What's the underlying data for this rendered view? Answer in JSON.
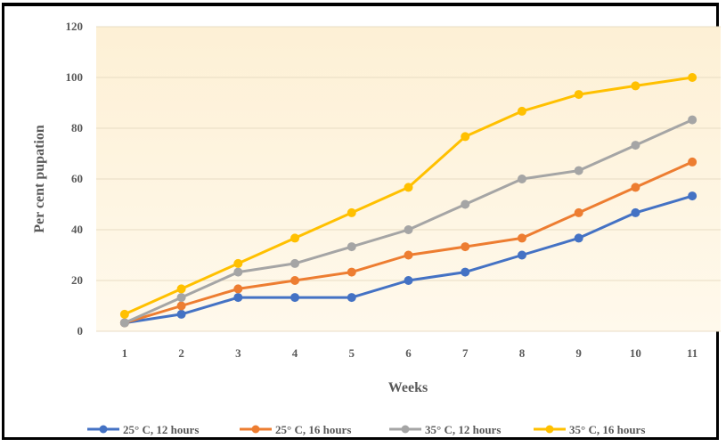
{
  "chart_data": {
    "type": "line",
    "title": "",
    "xlabel": "Weeks",
    "ylabel": "Per cent pupation",
    "categories": [
      "1",
      "2",
      "3",
      "4",
      "5",
      "6",
      "7",
      "8",
      "9",
      "10",
      "11"
    ],
    "ylim": [
      0,
      120
    ],
    "yticks": [
      "0",
      "20",
      "40",
      "60",
      "80",
      "100",
      "120"
    ],
    "grid": true,
    "legend": "bottom",
    "plot_background": [
      "#fdf0d5",
      "#fff9ec"
    ],
    "series": [
      {
        "name": "25° C, 12 hours",
        "color": "#4472c4",
        "values": [
          3.3,
          6.7,
          13.3,
          13.3,
          13.3,
          20,
          23.3,
          30,
          36.7,
          46.7,
          53.3
        ]
      },
      {
        "name": "25° C, 16 hours",
        "color": "#ed7d31",
        "values": [
          3.3,
          10,
          16.7,
          20,
          23.3,
          30,
          33.3,
          36.7,
          46.7,
          56.7,
          66.7
        ]
      },
      {
        "name": "35° C, 12 hours",
        "color": "#a5a5a5",
        "values": [
          3.3,
          13.3,
          23.3,
          26.7,
          33.3,
          40,
          50,
          60,
          63.3,
          73.3,
          83.3
        ]
      },
      {
        "name": "35° C, 16 hours",
        "color": "#ffc000",
        "values": [
          6.7,
          16.7,
          26.7,
          36.7,
          46.7,
          56.7,
          76.7,
          86.7,
          93.3,
          96.7,
          100
        ]
      }
    ]
  }
}
